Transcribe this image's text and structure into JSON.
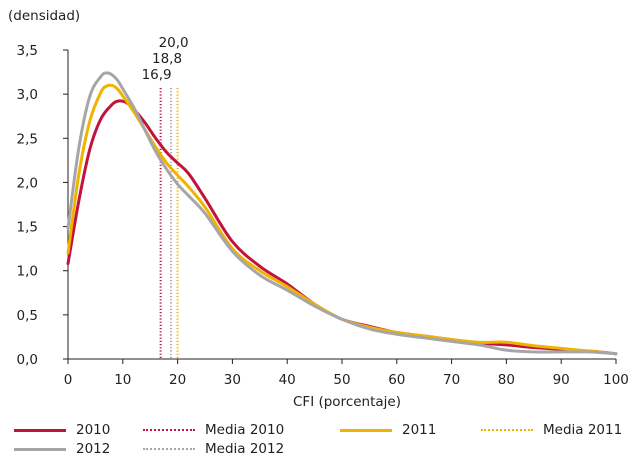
{
  "chart_data": {
    "type": "line",
    "ylabel": "(densidad)",
    "xlabel": "CFI (porcentaje)",
    "xlim": [
      0,
      100
    ],
    "ylim": [
      0,
      3.5
    ],
    "x_ticks": [
      "0",
      "10",
      "20",
      "30",
      "40",
      "50",
      "60",
      "70",
      "80",
      "90",
      "100"
    ],
    "y_ticks": [
      "0,0",
      "0,5",
      "1,0",
      "1,5",
      "2,0",
      "2,5",
      "3,0",
      "3,5"
    ],
    "x_tick_values": [
      0,
      10,
      20,
      30,
      40,
      50,
      60,
      70,
      80,
      90,
      100
    ],
    "y_tick_values": [
      0,
      0.5,
      1,
      1.5,
      2,
      2.5,
      3,
      3.5
    ],
    "series": [
      {
        "name": "2010",
        "color": "#c0143c",
        "style": "solid",
        "x": [
          0,
          2,
          4,
          6,
          8,
          9,
          10,
          11,
          12,
          14,
          16,
          18,
          20,
          22,
          25,
          30,
          35,
          40,
          45,
          50,
          55,
          60,
          65,
          70,
          75,
          80,
          85,
          90,
          95,
          100
        ],
        "y": [
          1.08,
          1.8,
          2.38,
          2.72,
          2.88,
          2.92,
          2.92,
          2.89,
          2.83,
          2.68,
          2.5,
          2.34,
          2.22,
          2.1,
          1.82,
          1.33,
          1.05,
          0.85,
          0.62,
          0.45,
          0.37,
          0.3,
          0.26,
          0.22,
          0.18,
          0.16,
          0.13,
          0.11,
          0.09,
          0.06
        ]
      },
      {
        "name": "2011",
        "color": "#f0b400",
        "style": "solid",
        "x": [
          0,
          2,
          4,
          6,
          7,
          8,
          9,
          10,
          12,
          14,
          16,
          18,
          20,
          22,
          25,
          30,
          35,
          40,
          45,
          50,
          55,
          60,
          65,
          70,
          75,
          80,
          85,
          90,
          95,
          100
        ],
        "y": [
          1.2,
          2.1,
          2.7,
          3.02,
          3.09,
          3.1,
          3.06,
          2.98,
          2.8,
          2.6,
          2.4,
          2.22,
          2.08,
          1.95,
          1.72,
          1.25,
          1.0,
          0.82,
          0.62,
          0.45,
          0.36,
          0.3,
          0.26,
          0.22,
          0.19,
          0.19,
          0.15,
          0.12,
          0.09,
          0.06
        ]
      },
      {
        "name": "2012",
        "color": "#a6a6a6",
        "style": "solid",
        "x": [
          0,
          2,
          4,
          6,
          7,
          8,
          9,
          10,
          12,
          14,
          16,
          18,
          20,
          22,
          25,
          30,
          35,
          40,
          45,
          50,
          55,
          60,
          65,
          70,
          75,
          80,
          85,
          90,
          95,
          100
        ],
        "y": [
          1.48,
          2.4,
          2.98,
          3.2,
          3.24,
          3.22,
          3.16,
          3.06,
          2.85,
          2.6,
          2.35,
          2.15,
          1.98,
          1.85,
          1.65,
          1.22,
          0.95,
          0.78,
          0.6,
          0.45,
          0.34,
          0.28,
          0.24,
          0.2,
          0.16,
          0.1,
          0.08,
          0.08,
          0.08,
          0.06
        ]
      }
    ],
    "means": [
      {
        "name": "Media 2010",
        "value": 16.9,
        "label": "16,9",
        "color": "#c0143c"
      },
      {
        "name": "Media 2012",
        "value": 18.8,
        "label": "18,8",
        "color": "#a6a6a6"
      },
      {
        "name": "Media 2011",
        "value": 20.0,
        "label": "20,0",
        "color": "#f0b400"
      }
    ],
    "legend": [
      {
        "name": "2010",
        "color": "#c0143c",
        "style": "solid"
      },
      {
        "name": "Media 2010",
        "color": "#c0143c",
        "style": "dotted"
      },
      {
        "name": "2011",
        "color": "#f0b400",
        "style": "solid"
      },
      {
        "name": "Media 2011",
        "color": "#f0b400",
        "style": "dotted"
      },
      {
        "name": "2012",
        "color": "#a6a6a6",
        "style": "solid"
      },
      {
        "name": "Media 2012",
        "color": "#a6a6a6",
        "style": "dotted"
      }
    ],
    "legend_position": "bottom",
    "grid": false
  }
}
